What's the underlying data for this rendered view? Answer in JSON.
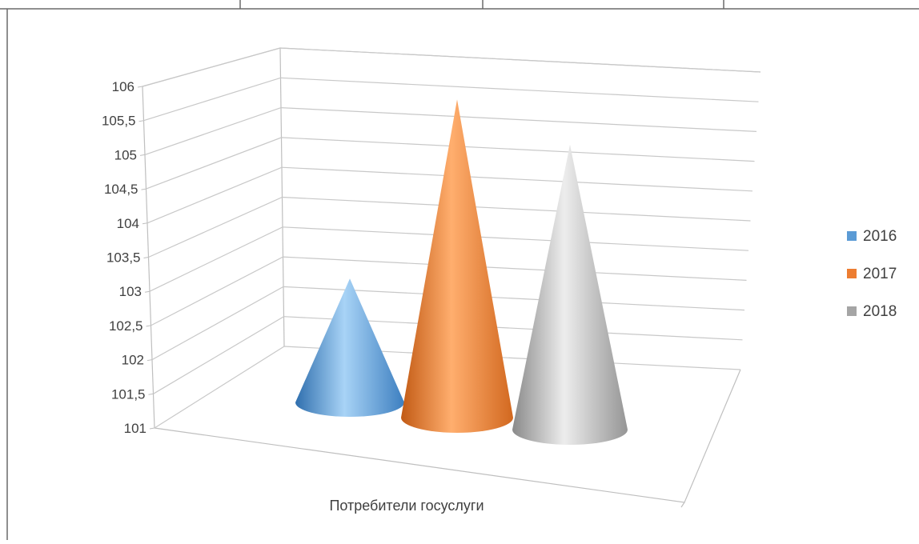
{
  "chart_data": {
    "type": "bar",
    "subtype": "3d-cone",
    "categories": [
      "Потребители госуслуги"
    ],
    "series": [
      {
        "name": "2016",
        "values": [
          103
        ],
        "color": "#5b9bd5"
      },
      {
        "name": "2017",
        "values": [
          105.7
        ],
        "color": "#ed7d31"
      },
      {
        "name": "2018",
        "values": [
          105.1
        ],
        "color": "#a5a5a5"
      }
    ],
    "ylim": [
      101,
      106
    ],
    "yticks": [
      "101",
      "101,5",
      "102",
      "102,5",
      "103",
      "103,5",
      "104",
      "104,5",
      "105",
      "105,5",
      "106"
    ],
    "grid": true,
    "legend_position": "right"
  }
}
